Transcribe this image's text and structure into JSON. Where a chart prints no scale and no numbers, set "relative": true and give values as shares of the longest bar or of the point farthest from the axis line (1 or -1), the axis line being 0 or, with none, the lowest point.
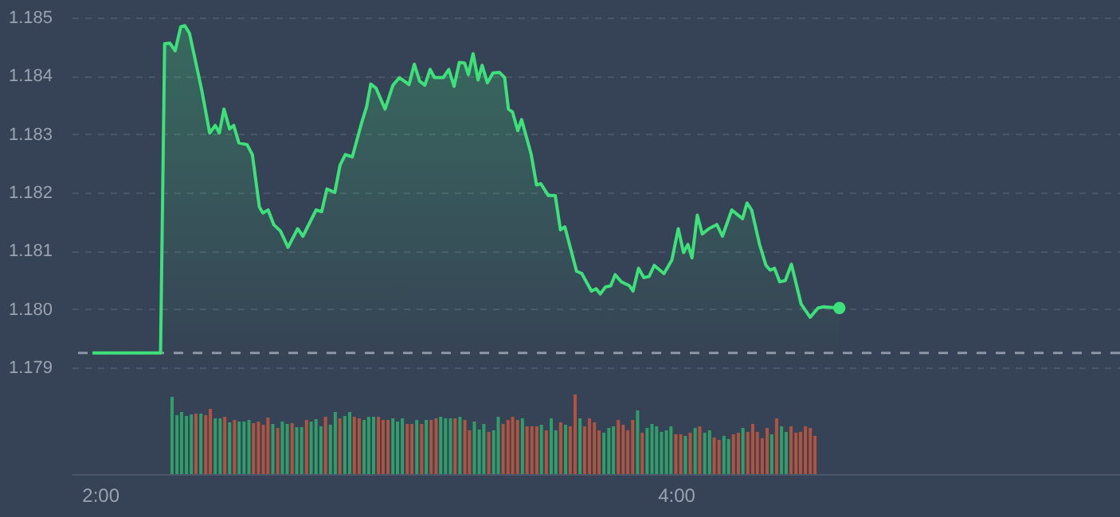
{
  "chart_data": [
    {
      "type": "area",
      "xlim": [
        1.929,
        5.515
      ],
      "ylim": [
        1.179,
        1.185
      ],
      "yticks": [
        1.179,
        {
          "value": 1.18,
          "label": "1.180"
        },
        1.181,
        1.182,
        1.183,
        1.184,
        1.185
      ],
      "tick_labels": "y",
      "grid": "y",
      "x": [
        2.0,
        2.233,
        2.247,
        2.265,
        2.283,
        2.302,
        2.316,
        2.332,
        2.374,
        2.401,
        2.42,
        2.434,
        2.45,
        2.469,
        2.483,
        2.501,
        2.529,
        2.547,
        2.571,
        2.583,
        2.601,
        2.62,
        2.643,
        2.669,
        2.702,
        2.72,
        2.765,
        2.784,
        2.802,
        2.829,
        2.847,
        2.865,
        2.889,
        2.92,
        2.938,
        2.952,
        2.97,
        3.001,
        3.028,
        3.05,
        3.083,
        3.101,
        3.119,
        3.137,
        3.155,
        3.17,
        3.2,
        3.219,
        3.237,
        3.255,
        3.273,
        3.286,
        3.302,
        3.319,
        3.333,
        3.351,
        3.37,
        3.392,
        3.41,
        3.423,
        3.437,
        3.455,
        3.468,
        3.501,
        3.519,
        3.534,
        3.559,
        3.583,
        3.601,
        3.616,
        3.656,
        3.674,
        3.707,
        3.723,
        3.737,
        3.755,
        3.773,
        3.788,
        3.809,
        3.837,
        3.849,
        3.868,
        3.886,
        3.904,
        3.922,
        3.955,
        3.982,
        4.004,
        4.022,
        4.037,
        4.051,
        4.069,
        4.086,
        4.109,
        4.136,
        4.155,
        4.187,
        4.209,
        4.224,
        4.239,
        4.255,
        4.282,
        4.304,
        4.318,
        4.333,
        4.351,
        4.37,
        4.391,
        4.424,
        4.455,
        4.482,
        4.501,
        4.555
      ],
      "series": [
        {
          "color": "#3ee07a",
          "values": [
            1.17925,
            1.17925,
            1.18455,
            1.18456,
            1.18443,
            1.18484,
            1.18486,
            1.18473,
            1.18375,
            1.18302,
            1.18315,
            1.18302,
            1.18343,
            1.18309,
            1.18315,
            1.18285,
            1.18282,
            1.18265,
            1.18175,
            1.18165,
            1.1817,
            1.18145,
            1.18134,
            1.18106,
            1.18138,
            1.18125,
            1.1817,
            1.18167,
            1.18206,
            1.182,
            1.18247,
            1.18265,
            1.18261,
            1.18318,
            1.18347,
            1.18386,
            1.18379,
            1.18343,
            1.18384,
            1.18397,
            1.18385,
            1.1842,
            1.18391,
            1.18384,
            1.18411,
            1.18397,
            1.18397,
            1.18411,
            1.18382,
            1.18423,
            1.18422,
            1.18402,
            1.18438,
            1.18393,
            1.18418,
            1.18388,
            1.18405,
            1.18406,
            1.18397,
            1.18343,
            1.18338,
            1.18306,
            1.18325,
            1.18265,
            1.18213,
            1.18215,
            1.18195,
            1.18195,
            1.18136,
            1.18141,
            1.18065,
            1.18061,
            1.18031,
            1.18035,
            1.18026,
            1.18038,
            1.1804,
            1.18059,
            1.18047,
            1.1804,
            1.18031,
            1.1807,
            1.18054,
            1.18056,
            1.18075,
            1.18061,
            1.18084,
            1.18138,
            1.18097,
            1.18111,
            1.18088,
            1.18161,
            1.18129,
            1.18138,
            1.18145,
            1.18125,
            1.1817,
            1.18161,
            1.18155,
            1.18182,
            1.1817,
            1.18111,
            1.18075,
            1.18067,
            1.1807,
            1.18047,
            1.18049,
            1.18077,
            1.18009,
            1.17986,
            1.18002,
            1.18004,
            1.18002
          ]
        }
      ],
      "ref_lines": [
        {
          "axis": "y",
          "value": 1.17925,
          "color": "#8e97a6",
          "line_style": "dashed"
        }
      ]
    },
    {
      "type": "bar",
      "relative": true,
      "xlim": [
        1.929,
        5.515
      ],
      "xticks": [
        {
          "value": 2,
          "label": "2:00"
        },
        {
          "value": 4,
          "label": "4:00"
        }
      ],
      "tick_labels": "x",
      "grid": false,
      "x": [
        2.25,
        2.267,
        2.283,
        2.3,
        2.317,
        2.333,
        2.35,
        2.367,
        2.383,
        2.4,
        2.417,
        2.433,
        2.45,
        2.467,
        2.483,
        2.5,
        2.517,
        2.533,
        2.55,
        2.567,
        2.583,
        2.6,
        2.617,
        2.633,
        2.65,
        2.667,
        2.683,
        2.7,
        2.717,
        2.733,
        2.75,
        2.767,
        2.783,
        2.8,
        2.817,
        2.833,
        2.85,
        2.867,
        2.883,
        2.9,
        2.917,
        2.933,
        2.95,
        2.967,
        2.983,
        3.0,
        3.017,
        3.033,
        3.05,
        3.067,
        3.083,
        3.1,
        3.117,
        3.133,
        3.15,
        3.167,
        3.183,
        3.2,
        3.217,
        3.233,
        3.25,
        3.267,
        3.283,
        3.3,
        3.317,
        3.333,
        3.35,
        3.367,
        3.383,
        3.4,
        3.417,
        3.433,
        3.45,
        3.467,
        3.483,
        3.5,
        3.517,
        3.533,
        3.55,
        3.567,
        3.583,
        3.6,
        3.617,
        3.633,
        3.65,
        3.667,
        3.683,
        3.7,
        3.717,
        3.733,
        3.75,
        3.767,
        3.783,
        3.8,
        3.817,
        3.833,
        3.85,
        3.867,
        3.883,
        3.9,
        3.917,
        3.933,
        3.95,
        3.967,
        3.983,
        4.0,
        4.017,
        4.033,
        4.05,
        4.067,
        4.083,
        4.1,
        4.117,
        4.133,
        4.15,
        4.167,
        4.183,
        4.2,
        4.217,
        4.233,
        4.25,
        4.267,
        4.283,
        4.3,
        4.317,
        4.333,
        4.35,
        4.367,
        4.383,
        4.4,
        4.417,
        4.433,
        4.45,
        4.467,
        4.483
      ],
      "values": [
        0.97,
        0.74,
        0.78,
        0.73,
        0.75,
        0.76,
        0.76,
        0.74,
        0.82,
        0.7,
        0.7,
        0.72,
        0.65,
        0.68,
        0.66,
        0.66,
        0.68,
        0.64,
        0.66,
        0.62,
        0.71,
        0.63,
        0.58,
        0.66,
        0.63,
        0.64,
        0.59,
        0.59,
        0.68,
        0.66,
        0.69,
        0.6,
        0.72,
        0.62,
        0.78,
        0.7,
        0.73,
        0.78,
        0.72,
        0.7,
        0.68,
        0.72,
        0.72,
        0.72,
        0.68,
        0.68,
        0.7,
        0.66,
        0.7,
        0.63,
        0.63,
        0.68,
        0.63,
        0.68,
        0.68,
        0.7,
        0.72,
        0.7,
        0.7,
        0.7,
        0.72,
        0.68,
        0.55,
        0.66,
        0.56,
        0.63,
        0.53,
        0.55,
        0.72,
        0.63,
        0.68,
        0.72,
        0.68,
        0.7,
        0.6,
        0.6,
        0.6,
        0.62,
        0.55,
        0.7,
        0.55,
        0.65,
        0.62,
        0.6,
        1,
        0.7,
        0.6,
        0.7,
        0.65,
        0.55,
        0.52,
        0.58,
        0.6,
        0.68,
        0.62,
        0.55,
        0.68,
        0.8,
        0.52,
        0.58,
        0.63,
        0.6,
        0.53,
        0.55,
        0.6,
        0.5,
        0.5,
        0.48,
        0.52,
        0.58,
        0.6,
        0.52,
        0.55,
        0.46,
        0.43,
        0.48,
        0.44,
        0.5,
        0.52,
        0.58,
        0.53,
        0.63,
        0.53,
        0.45,
        0.58,
        0.5,
        0.7,
        0.6,
        0.53,
        0.6,
        0.52,
        0.53,
        0.6,
        0.58,
        0.48
      ],
      "colors": [
        "#2f9e68",
        "#2f9e68",
        "#2f9e68",
        "#2f9e68",
        "#2f9e68",
        "#b0533f",
        "#2f9e68",
        "#b0533f",
        "#b0533f",
        "#2f9e68",
        "#2f9e68",
        "#b0533f",
        "#2f9e68",
        "#b0533f",
        "#2f9e68",
        "#2f9e68",
        "#2f9e68",
        "#b0533f",
        "#b0533f",
        "#b0533f",
        "#b0533f",
        "#2f9e68",
        "#b0533f",
        "#2f9e68",
        "#2f9e68",
        "#b0533f",
        "#2f9e68",
        "#2f9e68",
        "#b0533f",
        "#2f9e68",
        "#2f9e68",
        "#2f9e68",
        "#b0533f",
        "#2f9e68",
        "#2f9e68",
        "#b0533f",
        "#2f9e68",
        "#2f9e68",
        "#b0533f",
        "#b0533f",
        "#2f9e68",
        "#2f9e68",
        "#2f9e68",
        "#b0533f",
        "#b0533f",
        "#b0533f",
        "#2f9e68",
        "#2f9e68",
        "#2f9e68",
        "#b0533f",
        "#b0533f",
        "#2f9e68",
        "#b0533f",
        "#2f9e68",
        "#b0533f",
        "#b0533f",
        "#2f9e68",
        "#2f9e68",
        "#2f9e68",
        "#b0533f",
        "#2f9e68",
        "#b0533f",
        "#b0533f",
        "#2f9e68",
        "#2f9e68",
        "#2f9e68",
        "#b0533f",
        "#2f9e68",
        "#2f9e68",
        "#b0533f",
        "#b0533f",
        "#b0533f",
        "#b0533f",
        "#2f9e68",
        "#b0533f",
        "#b0533f",
        "#b0533f",
        "#2f9e68",
        "#b0533f",
        "#2f9e68",
        "#2f9e68",
        "#b0533f",
        "#2f9e68",
        "#b0533f",
        "#b0533f",
        "#2f9e68",
        "#b0533f",
        "#b0533f",
        "#b0533f",
        "#b0533f",
        "#2f9e68",
        "#2f9e68",
        "#2f9e68",
        "#b0533f",
        "#b0533f",
        "#b0533f",
        "#b0533f",
        "#2f9e68",
        "#b0533f",
        "#2f9e68",
        "#2f9e68",
        "#2f9e68",
        "#2f9e68",
        "#2f9e68",
        "#2f9e68",
        "#b0533f",
        "#b0533f",
        "#2f9e68",
        "#b0533f",
        "#2f9e68",
        "#b0533f",
        "#2f9e68",
        "#2f9e68",
        "#b0533f",
        "#b0533f",
        "#2f9e68",
        "#2f9e68",
        "#b0533f",
        "#b0533f",
        "#2f9e68",
        "#b0533f",
        "#b0533f",
        "#b0533f",
        "#b0533f",
        "#b0533f",
        "#2f9e68",
        "#b0533f",
        "#2f9e68",
        "#2f9e68",
        "#b0533f",
        "#b0533f",
        "#b0533f",
        "#b0533f",
        "#b0533f",
        "#b0533f"
      ]
    }
  ]
}
